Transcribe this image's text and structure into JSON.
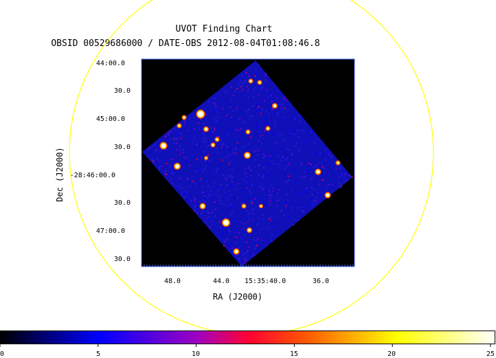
{
  "chart_data": {
    "type": "heatmap",
    "title": "UVOT Finding Chart",
    "subtitle": "OBSID 00529686000 / DATE-OBS 2012-08-04T01:08:46.8",
    "xlabel": "RA (J2000)",
    "ylabel": "Dec (J2000)",
    "x_ticks": [
      "48.0",
      "44.0",
      "15:35:40.0",
      "36.0"
    ],
    "y_ticks": [
      "44:00.0",
      "30.0",
      "45:00.0",
      "30.0",
      "-28:46:00.0",
      "30.0",
      "47:00.0",
      "30.0"
    ],
    "colorbar": {
      "min": 0,
      "max": 25,
      "ticks": [
        "0",
        "5",
        "10",
        "15",
        "20",
        "25"
      ]
    },
    "colors": {
      "background": "#000000",
      "image_base": "#1010b8",
      "circle": "#ffff00",
      "frame": "#4a6cff"
    }
  }
}
